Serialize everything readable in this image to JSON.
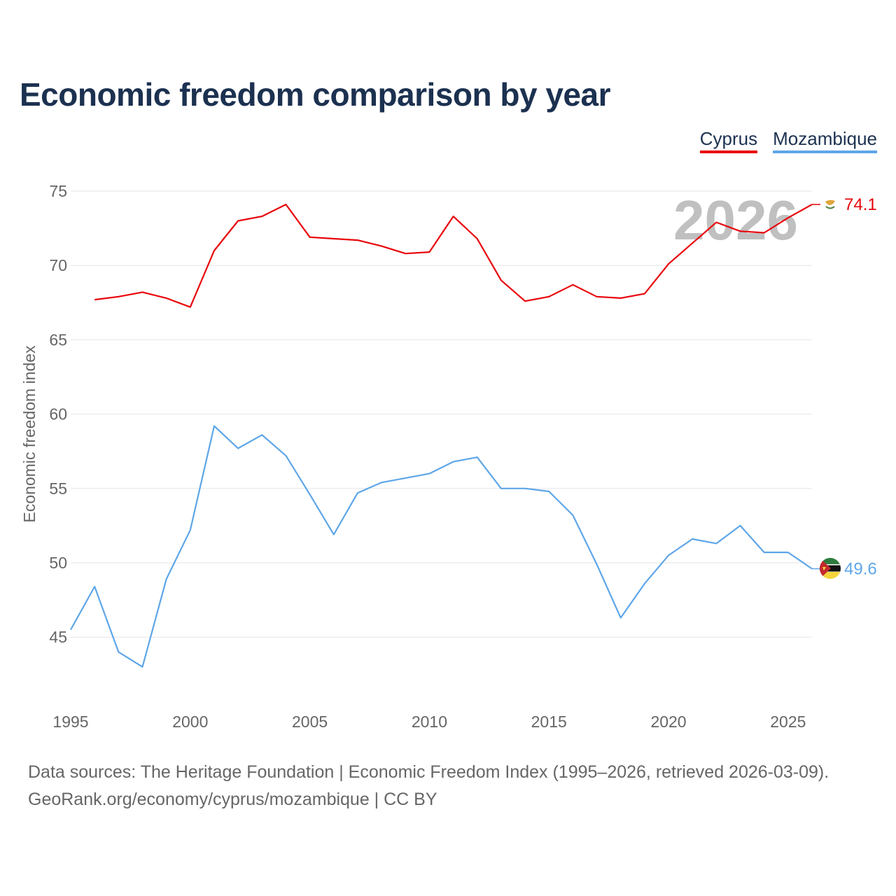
{
  "title": "Economic freedom comparison by year",
  "legend": [
    {
      "label": "Cyprus",
      "color": "#e8050b"
    },
    {
      "label": "Mozambique",
      "color": "#5ea6e8"
    }
  ],
  "year_watermark": "2026",
  "footer": {
    "line1": "Data sources: The Heritage Foundation | Economic Freedom Index (1995–2026, retrieved 2026-03-09).",
    "line2": "GeoRank.org/economy/cyprus/mozambique | CC BY"
  },
  "chart_data": {
    "type": "line",
    "title": "Economic freedom comparison by year",
    "xlabel": "",
    "ylabel": "Economic freedom index",
    "xlim": [
      1995,
      2026
    ],
    "ylim": [
      41,
      76
    ],
    "x_ticks": [
      1995,
      2000,
      2005,
      2010,
      2015,
      2020,
      2025
    ],
    "y_ticks": [
      45,
      50,
      55,
      60,
      65,
      70,
      75
    ],
    "grid": true,
    "series": [
      {
        "name": "Cyprus",
        "color": "#e8050b",
        "end_label": "74.1",
        "x": [
          1996,
          1997,
          1998,
          1999,
          2000,
          2001,
          2002,
          2003,
          2004,
          2005,
          2006,
          2007,
          2008,
          2009,
          2010,
          2011,
          2012,
          2013,
          2014,
          2015,
          2016,
          2017,
          2018,
          2019,
          2020,
          2021,
          2022,
          2023,
          2024,
          2025,
          2026
        ],
        "values": [
          67.7,
          67.9,
          68.2,
          67.8,
          67.2,
          71.0,
          73.0,
          73.3,
          74.1,
          71.9,
          71.8,
          71.7,
          71.3,
          70.8,
          70.9,
          73.3,
          71.8,
          69.0,
          67.6,
          67.9,
          68.7,
          67.9,
          67.8,
          68.1,
          70.1,
          71.5,
          72.9,
          72.3,
          72.2,
          73.2,
          74.1
        ]
      },
      {
        "name": "Mozambique",
        "color": "#5ea6e8",
        "end_label": "49.6",
        "x": [
          1995,
          1996,
          1997,
          1998,
          1999,
          2000,
          2001,
          2002,
          2003,
          2004,
          2005,
          2006,
          2007,
          2008,
          2009,
          2010,
          2011,
          2012,
          2013,
          2014,
          2015,
          2016,
          2017,
          2018,
          2019,
          2020,
          2021,
          2022,
          2023,
          2024,
          2025,
          2026
        ],
        "values": [
          45.5,
          48.4,
          44.0,
          43.0,
          48.9,
          52.2,
          59.2,
          57.7,
          58.6,
          57.2,
          54.6,
          51.9,
          54.7,
          55.4,
          55.7,
          56.0,
          56.8,
          57.1,
          55.0,
          55.0,
          54.8,
          53.2,
          49.9,
          46.3,
          48.6,
          50.5,
          51.6,
          51.3,
          52.5,
          50.7,
          50.7,
          49.6
        ]
      }
    ]
  }
}
